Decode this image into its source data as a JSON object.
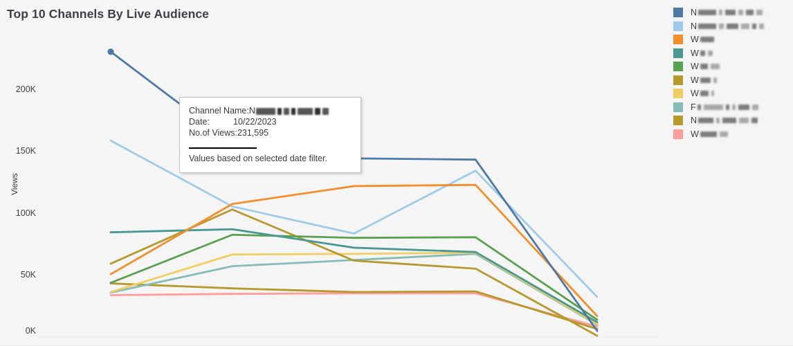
{
  "title": "Top 10 Channels By Live Audience",
  "y_axis": {
    "label": "Views",
    "ticks": [
      "0K",
      "50K",
      "100K",
      "150K",
      "200K"
    ]
  },
  "tooltip": {
    "channel_label": "Channel Name:",
    "channel_value_visible_letter": "N",
    "channel_value_redacted": true,
    "date_label": "Date:",
    "date_value": "10/22/2023",
    "views_label": "No.of Views:",
    "views_value": "231,595",
    "footnote": "Values based on selected date filter."
  },
  "legend": {
    "items": [
      {
        "letter": "N",
        "color": "#4e79a7",
        "redacted": true,
        "mask": [
          26,
          5,
          15,
          7,
          11,
          9
        ]
      },
      {
        "letter": "N",
        "color": "#a0cbe8",
        "redacted": true,
        "mask": [
          26,
          7,
          17,
          12,
          6,
          7
        ]
      },
      {
        "letter": "W",
        "color": "#f28e2b",
        "redacted": true,
        "mask": [
          20
        ]
      },
      {
        "letter": "W",
        "color": "#499894",
        "redacted": true,
        "mask": [
          7,
          7
        ]
      },
      {
        "letter": "W",
        "color": "#59a14f",
        "redacted": true,
        "mask": [
          11,
          13
        ]
      },
      {
        "letter": "W",
        "color": "#b6992d",
        "redacted": true,
        "mask": [
          15,
          5
        ]
      },
      {
        "letter": "W",
        "color": "#f1ce63",
        "redacted": true,
        "mask": [
          12,
          4
        ]
      },
      {
        "letter": "F",
        "color": "#86bcb6",
        "redacted": true,
        "mask": [
          5,
          28,
          5,
          5,
          16,
          9
        ]
      },
      {
        "letter": "N",
        "color": "#b6992d",
        "redacted": true,
        "mask": [
          22,
          5,
          20,
          14,
          9
        ]
      },
      {
        "letter": "W",
        "color": "#ff9d9a",
        "redacted": true,
        "mask": [
          24,
          12
        ]
      }
    ]
  },
  "chart_data": {
    "type": "line",
    "title": "Top 10 Channels By Live Audience",
    "xlabel": "",
    "ylabel": "Views",
    "x": [
      1,
      2,
      3,
      4,
      5
    ],
    "x_tick_labels_visible": false,
    "ylim": [
      0,
      240000
    ],
    "y_tick_values": [
      0,
      50000,
      100000,
      150000,
      200000
    ],
    "grid": "horizontal-faint",
    "legend_position": "right",
    "hovered_point": {
      "series_index": 0,
      "point_index": 0,
      "date": "10/22/2023",
      "views": 231595
    },
    "series": [
      {
        "name": "N (redacted channel 1)",
        "color": "#4e79a7",
        "values": [
          231595,
          157000,
          145000,
          144000,
          5000
        ]
      },
      {
        "name": "N (redacted channel 2)",
        "color": "#a0cbe8",
        "values": [
          159500,
          106000,
          84000,
          135000,
          32500
        ]
      },
      {
        "name": "W (redacted channel 3)",
        "color": "#f28e2b",
        "values": [
          51000,
          108000,
          122500,
          123500,
          17000
        ]
      },
      {
        "name": "W (redacted channel 4)",
        "color": "#499894",
        "values": [
          85000,
          87500,
          72500,
          69000,
          12000
        ]
      },
      {
        "name": "W (redacted channel 5)",
        "color": "#59a14f",
        "values": [
          44000,
          83000,
          80500,
          81000,
          14000
        ]
      },
      {
        "name": "W (redacted channel 6)",
        "color": "#b6992d",
        "values": [
          59500,
          103500,
          62000,
          55500,
          1000
        ]
      },
      {
        "name": "W (redacted channel 7)",
        "color": "#f1ce63",
        "values": [
          36500,
          67000,
          67500,
          68500,
          10500
        ]
      },
      {
        "name": "F (redacted channel 8)",
        "color": "#86bcb6",
        "values": [
          36000,
          57500,
          62500,
          67500,
          10000
        ]
      },
      {
        "name": "N (redacted channel 9)",
        "color": "#b6992d",
        "values": [
          43500,
          39500,
          36500,
          37000,
          6500
        ]
      },
      {
        "name": "W (redacted channel 10)",
        "color": "#ff9d9a",
        "values": [
          34000,
          35000,
          35500,
          35500,
          8500
        ]
      }
    ]
  }
}
